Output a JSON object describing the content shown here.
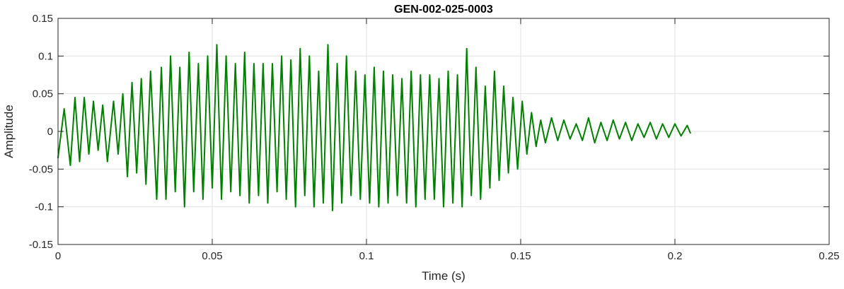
{
  "chart_data": {
    "type": "line",
    "title": "GEN-002-025-0003",
    "xlabel": "Time (s)",
    "ylabel": "Amplitude",
    "xlim": [
      0,
      0.25
    ],
    "ylim": [
      -0.15,
      0.15
    ],
    "x_ticks": [
      0,
      0.05,
      0.1,
      0.15,
      0.2,
      0.25
    ],
    "x_tick_labels": [
      "0",
      "0.05",
      "0.1",
      "0.15",
      "0.2",
      "0.25"
    ],
    "y_ticks": [
      0.15,
      0.1,
      0.05,
      0,
      -0.05,
      -0.1,
      -0.15
    ],
    "y_tick_labels": [
      "0.15",
      "0.1",
      "0.05",
      "0",
      "-0.05",
      "-0.1",
      "-0.15"
    ],
    "grid": true,
    "series": [
      {
        "color": "#008000",
        "x": [
          0,
          0.002,
          0.004,
          0.0055,
          0.007,
          0.0085,
          0.01,
          0.0115,
          0.013,
          0.0145,
          0.016,
          0.018,
          0.0195,
          0.021,
          0.0225,
          0.024,
          0.0255,
          0.027,
          0.0285,
          0.03,
          0.032,
          0.0335,
          0.035,
          0.0365,
          0.038,
          0.0395,
          0.041,
          0.0425,
          0.044,
          0.0455,
          0.047,
          0.0485,
          0.05,
          0.0515,
          0.053,
          0.0545,
          0.056,
          0.0575,
          0.059,
          0.0605,
          0.062,
          0.0635,
          0.065,
          0.0665,
          0.068,
          0.0695,
          0.071,
          0.0725,
          0.074,
          0.0755,
          0.077,
          0.0785,
          0.08,
          0.0815,
          0.083,
          0.0845,
          0.086,
          0.0875,
          0.089,
          0.0905,
          0.092,
          0.0935,
          0.095,
          0.0965,
          0.098,
          0.0995,
          0.101,
          0.1025,
          0.104,
          0.1055,
          0.107,
          0.1085,
          0.11,
          0.1115,
          0.113,
          0.1145,
          0.116,
          0.1175,
          0.119,
          0.1205,
          0.122,
          0.1235,
          0.125,
          0.1265,
          0.128,
          0.1295,
          0.131,
          0.1325,
          0.134,
          0.1355,
          0.137,
          0.1385,
          0.14,
          0.1415,
          0.143,
          0.1445,
          0.146,
          0.1475,
          0.149,
          0.1505,
          0.152,
          0.1535,
          0.155,
          0.1565,
          0.158,
          0.16,
          0.162,
          0.164,
          0.166,
          0.168,
          0.17,
          0.172,
          0.174,
          0.176,
          0.178,
          0.18,
          0.182,
          0.184,
          0.186,
          0.188,
          0.19,
          0.192,
          0.194,
          0.196,
          0.198,
          0.2,
          0.202,
          0.204,
          0.205
        ],
        "y": [
          -0.035,
          0.03,
          -0.045,
          0.045,
          -0.04,
          0.045,
          -0.03,
          0.04,
          -0.025,
          0.035,
          -0.04,
          0.04,
          -0.03,
          0.05,
          -0.06,
          0.065,
          -0.055,
          0.07,
          -0.07,
          0.08,
          -0.09,
          0.085,
          -0.09,
          0.1,
          -0.08,
          0.085,
          -0.1,
          0.105,
          -0.08,
          0.09,
          -0.09,
          0.1,
          -0.075,
          0.115,
          -0.09,
          0.1,
          -0.08,
          0.09,
          -0.085,
          0.105,
          -0.095,
          0.09,
          -0.085,
          0.09,
          -0.095,
          0.09,
          -0.08,
          0.1,
          -0.09,
          0.095,
          -0.1,
          0.11,
          -0.085,
          0.1,
          -0.1,
          0.08,
          -0.095,
          0.115,
          -0.105,
          0.09,
          -0.095,
          0.1,
          -0.085,
          0.08,
          -0.09,
          0.075,
          -0.095,
          0.085,
          -0.1,
          0.08,
          -0.095,
          0.075,
          -0.085,
          0.07,
          -0.095,
          0.08,
          -0.1,
          0.075,
          -0.09,
          0.075,
          -0.09,
          0.07,
          -0.1,
          0.08,
          -0.095,
          0.075,
          -0.1,
          0.11,
          -0.085,
          0.085,
          -0.09,
          0.06,
          -0.075,
          0.08,
          -0.065,
          0.06,
          -0.055,
          0.045,
          -0.05,
          0.04,
          -0.03,
          0.025,
          -0.02,
          0.015,
          -0.015,
          0.018,
          -0.012,
          0.015,
          -0.01,
          0.01,
          -0.012,
          0.018,
          -0.015,
          0.012,
          -0.012,
          0.015,
          -0.01,
          0.012,
          -0.012,
          0.01,
          -0.008,
          0.012,
          -0.01,
          0.01,
          -0.008,
          0.01,
          -0.006,
          0.008,
          -0.002
        ]
      }
    ]
  }
}
